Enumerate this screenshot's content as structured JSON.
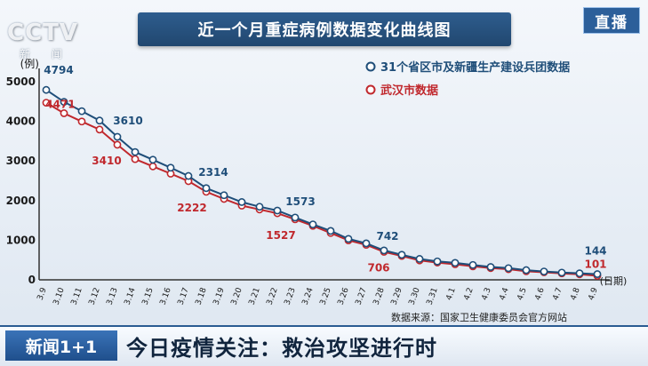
{
  "broadcast": {
    "logo": "CCTV",
    "logo_sub": "新 闻",
    "live_badge": "直播",
    "ticker_brand": "新闻1+1",
    "ticker_text": "今日疫情关注：救治攻坚进行时",
    "source": "数据来源：国家卫生健康委员会官方网站"
  },
  "colors": {
    "series_national": "#1f4e79",
    "series_wuhan": "#c0282d",
    "title_box": "#2a5585"
  },
  "chart_data": {
    "type": "line",
    "title": "近一个月重症病例数据变化曲线图",
    "ylabel": "(例)",
    "xlabel": "(日期)",
    "ylim": [
      0,
      5000
    ],
    "yticks": [
      0,
      1000,
      2000,
      3000,
      4000,
      5000
    ],
    "grid": false,
    "legend": "top-right",
    "x": [
      "3.9",
      "3.10",
      "3.11",
      "3.12",
      "3.13",
      "3.14",
      "3.15",
      "3.16",
      "3.17",
      "3.18",
      "3.19",
      "3.20",
      "3.21",
      "3.22",
      "3.23",
      "3.24",
      "3.25",
      "3.26",
      "3.27",
      "3.28",
      "3.29",
      "3.30",
      "3.31",
      "4.1",
      "4.2",
      "4.3",
      "4.4",
      "4.5",
      "4.6",
      "4.7",
      "4.8",
      "4.9"
    ],
    "series": [
      {
        "name": "31个省区市及新疆生产建设兵团数据",
        "values": [
          4794,
          4492,
          4257,
          4020,
          3610,
          3226,
          3032,
          2830,
          2622,
          2314,
          2136,
          1963,
          1845,
          1749,
          1573,
          1399,
          1235,
          1034,
          921,
          742,
          633,
          528,
          466,
          429,
          376,
          325,
          295,
          245,
          211,
          183,
          165,
          144
        ],
        "labeled": {
          "0": "4794",
          "4": "3610",
          "9": "2314",
          "14": "1573",
          "19": "742",
          "31": "144"
        }
      },
      {
        "name": "武汉市数据",
        "values": [
          4471,
          4205,
          3996,
          3793,
          3410,
          3047,
          2863,
          2680,
          2490,
          2222,
          2042,
          1872,
          1776,
          1680,
          1527,
          1363,
          1182,
          996,
          883,
          706,
          602,
          489,
          436,
          393,
          340,
          296,
          268,
          216,
          191,
          162,
          139,
          101
        ],
        "labeled": {
          "0": "4471",
          "4": "3410",
          "9": "2222",
          "14": "1527",
          "19": "706",
          "31": "101"
        }
      }
    ]
  }
}
